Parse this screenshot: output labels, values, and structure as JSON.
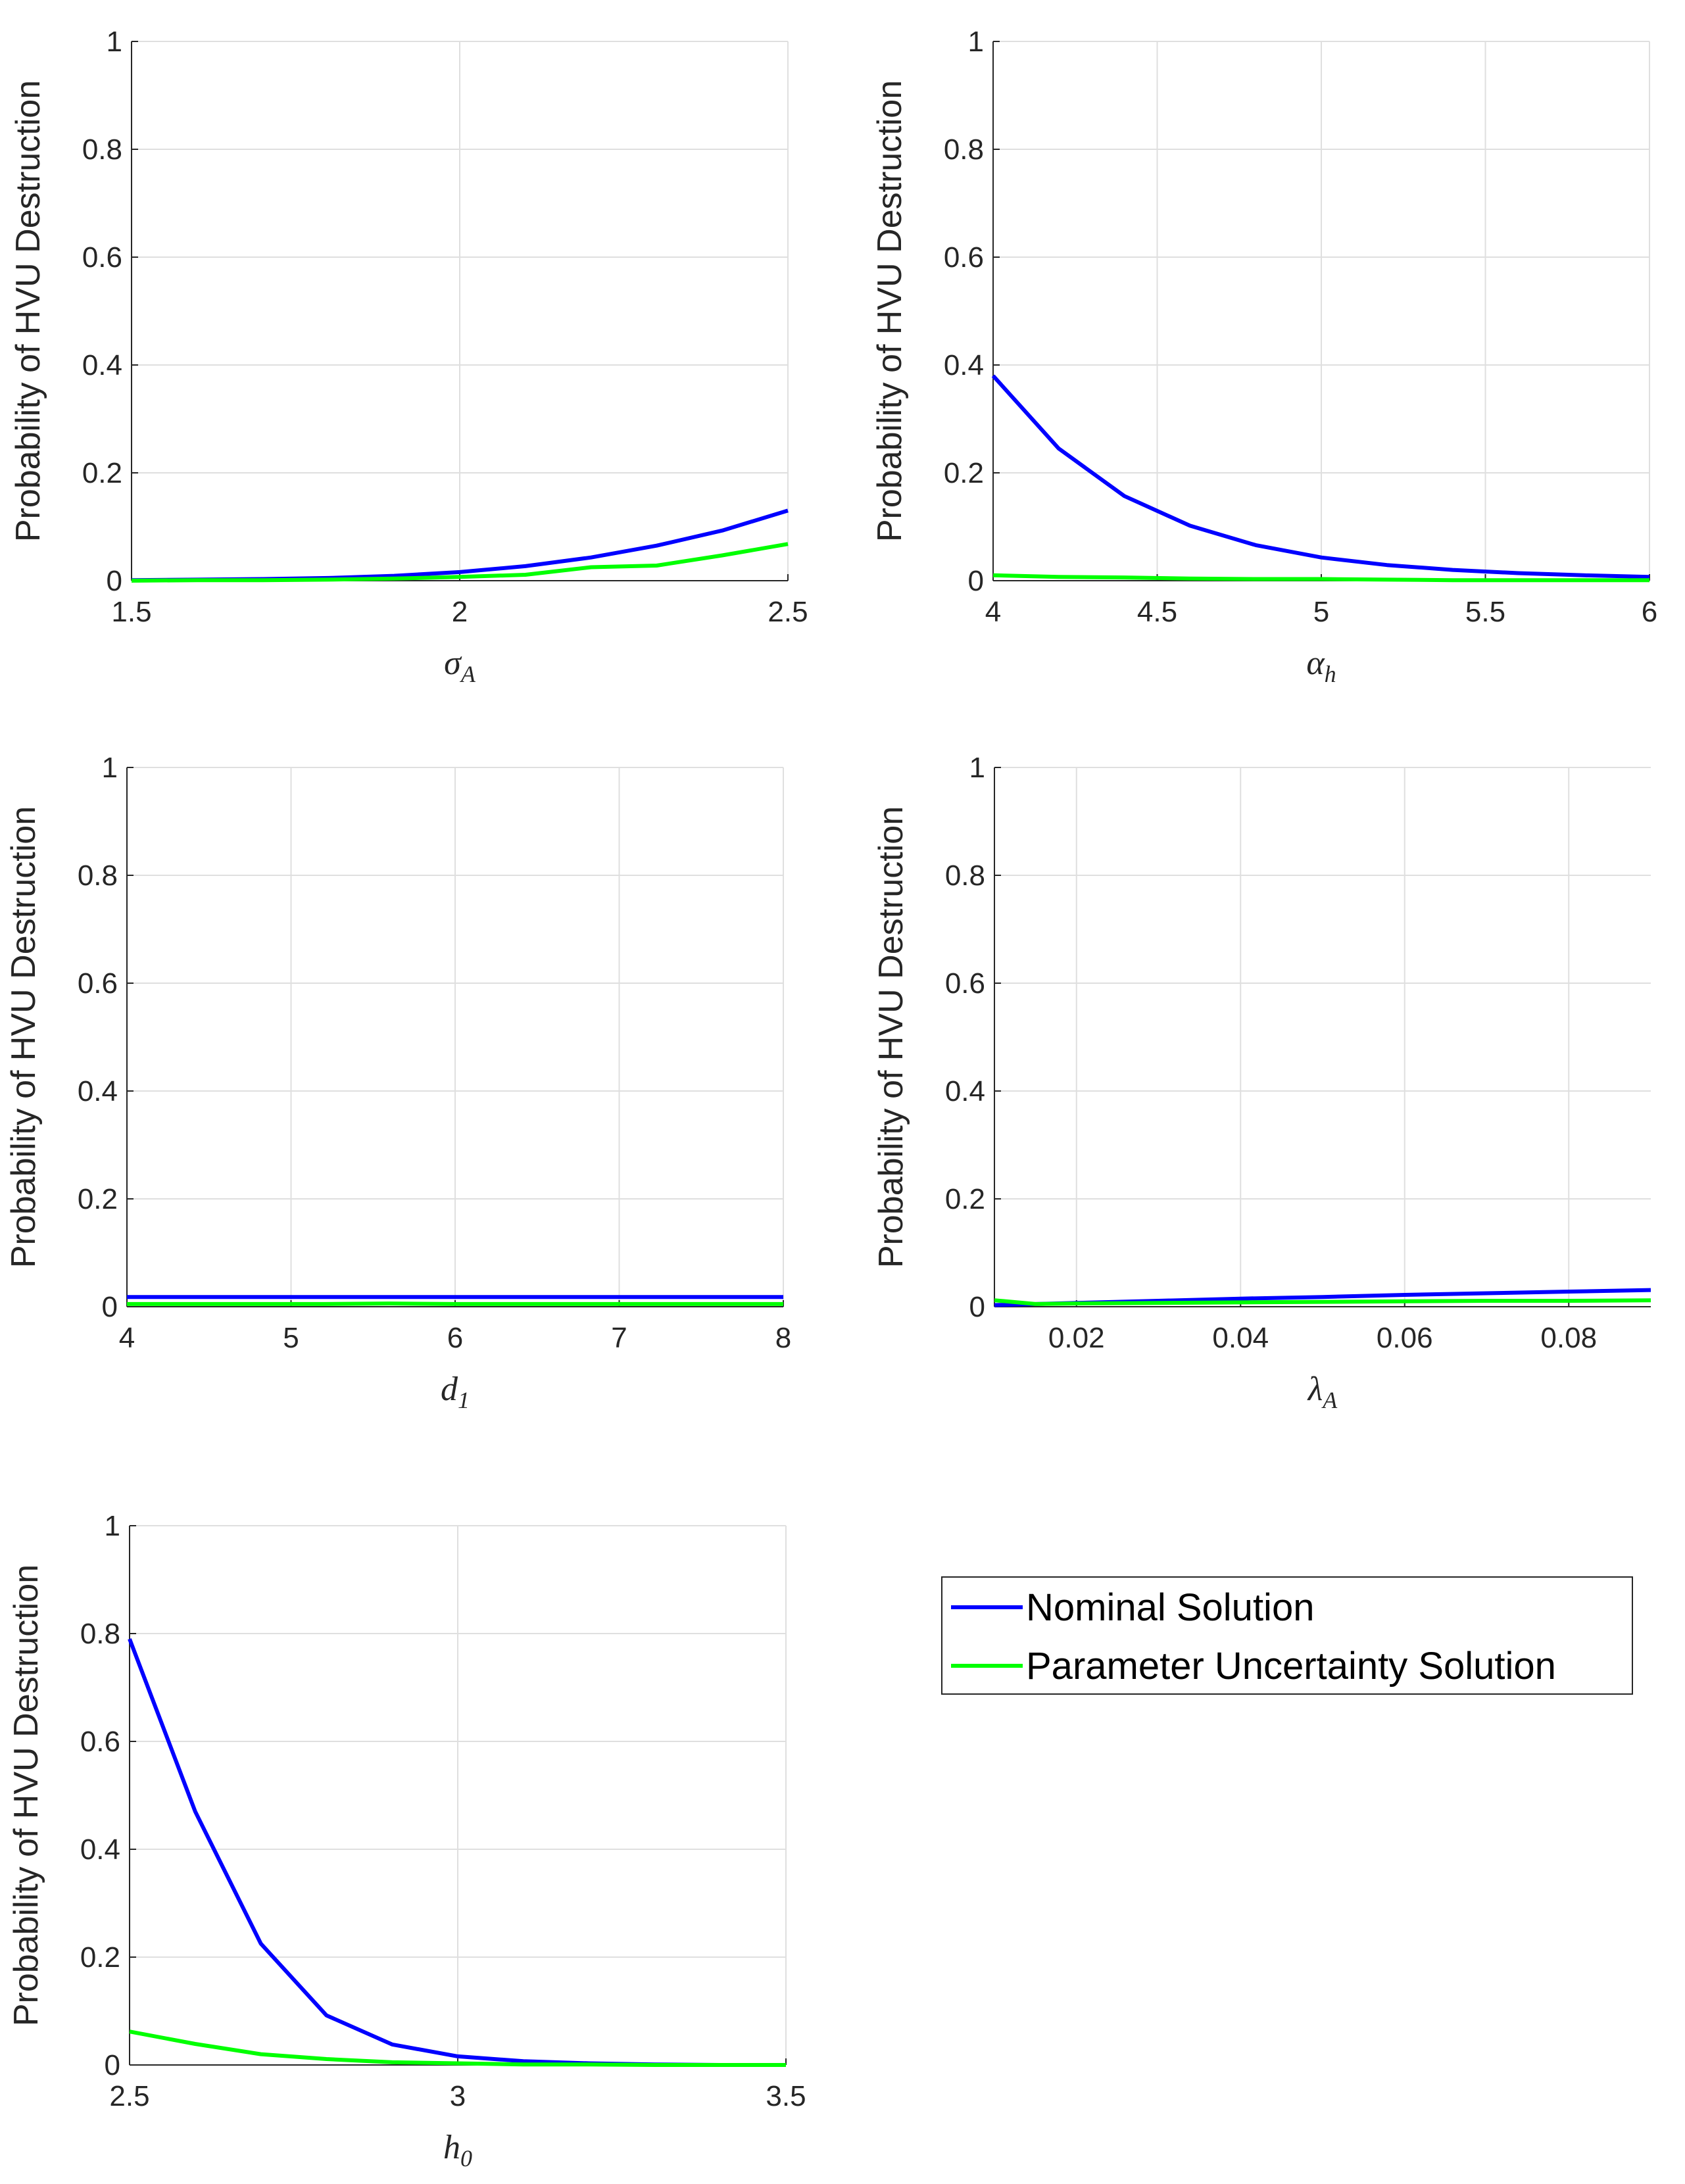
{
  "figure": {
    "legend": [
      {
        "label": "Nominal Solution",
        "color": "#0000ff"
      },
      {
        "label": "Parameter Uncertainty Solution",
        "color": "#00ff00"
      }
    ]
  },
  "chart_data": [
    {
      "type": "line",
      "ylabel": "Probability of HVU Destruction",
      "xlabel": {
        "symbol": "σ",
        "sub": "A"
      },
      "xlim": [
        1.5,
        2.5
      ],
      "ylim": [
        0,
        1
      ],
      "xticks": [
        1.5,
        2,
        2.5
      ],
      "xtick_labels": [
        "1.5",
        "2",
        "2.5"
      ],
      "yticks": [
        0,
        0.2,
        0.4,
        0.6,
        0.8,
        1
      ],
      "ytick_labels": [
        "0",
        "0.2",
        "0.4",
        "0.6",
        "0.8",
        "1"
      ],
      "grid": true,
      "series": [
        {
          "name": "Nominal Solution",
          "color": "#0000ff",
          "x": [
            1.5,
            1.6,
            1.7,
            1.8,
            1.9,
            2.0,
            2.1,
            2.2,
            2.3,
            2.4,
            2.5
          ],
          "y": [
            0.001,
            0.002,
            0.003,
            0.005,
            0.009,
            0.016,
            0.027,
            0.043,
            0.065,
            0.093,
            0.13
          ]
        },
        {
          "name": "Parameter Uncertainty Solution",
          "color": "#00ff00",
          "x": [
            1.5,
            1.6,
            1.7,
            1.8,
            1.9,
            2.0,
            2.1,
            2.2,
            2.3,
            2.4,
            2.5
          ],
          "y": [
            0.0,
            0.001,
            0.001,
            0.002,
            0.004,
            0.007,
            0.011,
            0.025,
            0.028,
            0.047,
            0.068
          ]
        }
      ]
    },
    {
      "type": "line",
      "ylabel": "Probability of HVU Destruction",
      "xlabel": {
        "symbol": "α",
        "sub": "h"
      },
      "xlim": [
        4,
        6
      ],
      "ylim": [
        0,
        1
      ],
      "xticks": [
        4,
        4.5,
        5,
        5.5,
        6
      ],
      "xtick_labels": [
        "4",
        "4.5",
        "5",
        "5.5",
        "6"
      ],
      "yticks": [
        0,
        0.2,
        0.4,
        0.6,
        0.8,
        1
      ],
      "ytick_labels": [
        "0",
        "0.2",
        "0.4",
        "0.6",
        "0.8",
        "1"
      ],
      "grid": true,
      "series": [
        {
          "name": "Nominal Solution",
          "color": "#0000ff",
          "x": [
            4.0,
            4.2,
            4.4,
            4.6,
            4.8,
            5.0,
            5.2,
            5.4,
            5.6,
            5.8,
            6.0
          ],
          "y": [
            0.38,
            0.245,
            0.157,
            0.102,
            0.066,
            0.043,
            0.029,
            0.02,
            0.014,
            0.01,
            0.007
          ]
        },
        {
          "name": "Parameter Uncertainty Solution",
          "color": "#00ff00",
          "x": [
            4.0,
            4.2,
            4.4,
            4.6,
            4.8,
            5.0,
            5.2,
            5.4,
            5.6,
            5.8,
            6.0
          ],
          "y": [
            0.01,
            0.007,
            0.006,
            0.004,
            0.003,
            0.003,
            0.002,
            0.001,
            0.001,
            0.001,
            0.001
          ]
        }
      ]
    },
    {
      "type": "line",
      "ylabel": "Probability of HVU Destruction",
      "xlabel": {
        "symbol": "d",
        "sub": "1"
      },
      "xlim": [
        4,
        8
      ],
      "ylim": [
        0,
        1
      ],
      "xticks": [
        4,
        5,
        6,
        7,
        8
      ],
      "xtick_labels": [
        "4",
        "5",
        "6",
        "7",
        "8"
      ],
      "yticks": [
        0,
        0.2,
        0.4,
        0.6,
        0.8,
        1
      ],
      "ytick_labels": [
        "0",
        "0.2",
        "0.4",
        "0.6",
        "0.8",
        "1"
      ],
      "grid": true,
      "series": [
        {
          "name": "Nominal Solution",
          "color": "#0000ff",
          "x": [
            4,
            4.4,
            4.8,
            5.2,
            5.6,
            6.0,
            6.4,
            6.8,
            7.2,
            7.6,
            8.0
          ],
          "y": [
            0.018,
            0.018,
            0.018,
            0.018,
            0.018,
            0.018,
            0.018,
            0.018,
            0.018,
            0.018,
            0.018
          ]
        },
        {
          "name": "Parameter Uncertainty Solution",
          "color": "#00ff00",
          "x": [
            4,
            4.4,
            4.8,
            5.2,
            5.6,
            6.0,
            6.4,
            6.8,
            7.2,
            7.6,
            8.0
          ],
          "y": [
            0.005,
            0.005,
            0.005,
            0.005,
            0.006,
            0.005,
            0.005,
            0.005,
            0.005,
            0.005,
            0.005
          ]
        }
      ]
    },
    {
      "type": "line",
      "ylabel": "Probability of HVU Destruction",
      "xlabel": {
        "symbol": "λ",
        "sub": "A"
      },
      "xlim": [
        0.01,
        0.09
      ],
      "ylim": [
        0,
        1
      ],
      "xticks": [
        0.02,
        0.04,
        0.06,
        0.08
      ],
      "xtick_labels": [
        "0.02",
        "0.04",
        "0.06",
        "0.08"
      ],
      "yticks": [
        0,
        0.2,
        0.4,
        0.6,
        0.8,
        1
      ],
      "ytick_labels": [
        "0",
        "0.2",
        "0.4",
        "0.6",
        "0.8",
        "1"
      ],
      "grid": true,
      "series": [
        {
          "name": "Nominal Solution",
          "color": "#0000ff",
          "x": [
            0.01,
            0.02,
            0.03,
            0.04,
            0.05,
            0.06,
            0.07,
            0.08,
            0.09
          ],
          "y": [
            0.003,
            0.007,
            0.011,
            0.015,
            0.018,
            0.022,
            0.025,
            0.028,
            0.031
          ]
        },
        {
          "name": "Parameter Uncertainty Solution",
          "color": "#00ff00",
          "x": [
            0.01,
            0.015,
            0.02,
            0.03,
            0.04,
            0.05,
            0.06,
            0.07,
            0.08,
            0.09
          ],
          "y": [
            0.012,
            0.005,
            0.006,
            0.007,
            0.008,
            0.009,
            0.01,
            0.011,
            0.011,
            0.012
          ]
        }
      ]
    },
    {
      "type": "line",
      "ylabel": "Probability of HVU Destruction",
      "xlabel": {
        "symbol": "h",
        "sub": "0"
      },
      "xlim": [
        2.5,
        3.5
      ],
      "ylim": [
        0,
        1
      ],
      "xticks": [
        2.5,
        3,
        3.5
      ],
      "xtick_labels": [
        "2.5",
        "3",
        "3.5"
      ],
      "yticks": [
        0,
        0.2,
        0.4,
        0.6,
        0.8,
        1
      ],
      "ytick_labels": [
        "0",
        "0.2",
        "0.4",
        "0.6",
        "0.8",
        "1"
      ],
      "grid": true,
      "series": [
        {
          "name": "Nominal Solution",
          "color": "#0000ff",
          "x": [
            2.5,
            2.6,
            2.7,
            2.8,
            2.9,
            3.0,
            3.1,
            3.2,
            3.3,
            3.4,
            3.5
          ],
          "y": [
            0.79,
            0.47,
            0.225,
            0.092,
            0.038,
            0.016,
            0.007,
            0.003,
            0.001,
            0.0,
            0.0
          ]
        },
        {
          "name": "Parameter Uncertainty Solution",
          "color": "#00ff00",
          "x": [
            2.5,
            2.6,
            2.7,
            2.8,
            2.9,
            3.0,
            3.1,
            3.2,
            3.3,
            3.4,
            3.5
          ],
          "y": [
            0.062,
            0.039,
            0.02,
            0.011,
            0.005,
            0.003,
            0.001,
            0.001,
            0.0,
            0.0,
            0.0
          ]
        }
      ]
    }
  ]
}
